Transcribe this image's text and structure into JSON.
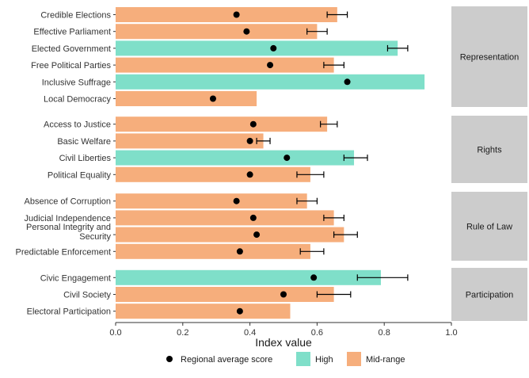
{
  "chart_data": {
    "type": "bar",
    "orientation": "horizontal",
    "xlabel": "Index value",
    "xlim": [
      0,
      1
    ],
    "x_ticks": [
      "0.0",
      "0.2",
      "0.4",
      "0.6",
      "0.8",
      "1.0"
    ],
    "grid": false,
    "legend": {
      "placement": "bottom",
      "items": [
        {
          "label": "Regional average score",
          "kind": "point",
          "color": "#000000"
        },
        {
          "label": "High",
          "kind": "fill",
          "color": "#7fdfc9"
        },
        {
          "label": "Mid-range",
          "kind": "fill",
          "color": "#f6ae7c"
        }
      ]
    },
    "colors": {
      "High": "#7fdfc9",
      "Mid-range": "#f6ae7c",
      "strip": "#cccccc",
      "point": "#000000"
    },
    "panels": [
      {
        "name": "Representation",
        "items": [
          {
            "label": "Credible Elections",
            "value": 0.66,
            "level": "Mid-range",
            "avg": 0.36,
            "err": [
              0.63,
              0.69
            ]
          },
          {
            "label": "Effective Parliament",
            "value": 0.6,
            "level": "Mid-range",
            "avg": 0.39,
            "err": [
              0.57,
              0.63
            ]
          },
          {
            "label": "Elected Government",
            "value": 0.84,
            "level": "High",
            "avg": 0.47,
            "err": [
              0.81,
              0.87
            ]
          },
          {
            "label": "Free Political Parties",
            "value": 0.65,
            "level": "Mid-range",
            "avg": 0.46,
            "err": [
              0.62,
              0.68
            ]
          },
          {
            "label": "Inclusive Suffrage",
            "value": 0.92,
            "level": "High",
            "avg": 0.69,
            "err": null
          },
          {
            "label": "Local Democracy",
            "value": 0.42,
            "level": "Mid-range",
            "avg": 0.29,
            "err": null
          }
        ]
      },
      {
        "name": "Rights",
        "items": [
          {
            "label": "Access to Justice",
            "value": 0.63,
            "level": "Mid-range",
            "avg": 0.41,
            "err": [
              0.61,
              0.66
            ]
          },
          {
            "label": "Basic Welfare",
            "value": 0.44,
            "level": "Mid-range",
            "avg": 0.4,
            "err": [
              0.42,
              0.46
            ]
          },
          {
            "label": "Civil Liberties",
            "value": 0.71,
            "level": "High",
            "avg": 0.51,
            "err": [
              0.68,
              0.75
            ]
          },
          {
            "label": "Political Equality",
            "value": 0.58,
            "level": "Mid-range",
            "avg": 0.4,
            "err": [
              0.54,
              0.62
            ]
          }
        ]
      },
      {
        "name": "Rule of Law",
        "items": [
          {
            "label": "Absence of Corruption",
            "value": 0.57,
            "level": "Mid-range",
            "avg": 0.36,
            "err": [
              0.54,
              0.6
            ]
          },
          {
            "label": "Judicial Independence",
            "value": 0.65,
            "level": "Mid-range",
            "avg": 0.41,
            "err": [
              0.62,
              0.68
            ]
          },
          {
            "label": [
              "Personal Integrity and",
              "Security"
            ],
            "value": 0.68,
            "level": "Mid-range",
            "avg": 0.42,
            "err": [
              0.65,
              0.72
            ]
          },
          {
            "label": "Predictable Enforcement",
            "value": 0.58,
            "level": "Mid-range",
            "avg": 0.37,
            "err": [
              0.55,
              0.62
            ]
          }
        ]
      },
      {
        "name": "Participation",
        "items": [
          {
            "label": "Civic Engagement",
            "value": 0.79,
            "level": "High",
            "avg": 0.59,
            "err": [
              0.72,
              0.87
            ]
          },
          {
            "label": "Civil Society",
            "value": 0.65,
            "level": "Mid-range",
            "avg": 0.5,
            "err": [
              0.6,
              0.7
            ]
          },
          {
            "label": "Electoral Participation",
            "value": 0.52,
            "level": "Mid-range",
            "avg": 0.37,
            "err": null
          }
        ]
      }
    ]
  }
}
